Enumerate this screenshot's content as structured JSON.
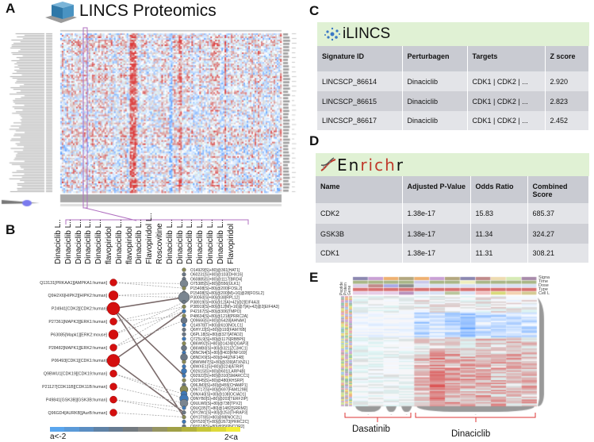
{
  "panels": {
    "a": "A",
    "b": "B",
    "c": "C",
    "d": "D",
    "e": "E"
  },
  "panel_a": {
    "title": "LINCS Proteomics",
    "logo_icon": "cube-icon",
    "column_labels": [
      "Dinaciclib L..",
      "Dinaciclib L..",
      "Dinaciclib L..",
      "Dinaciclib L..",
      "Dinaciclib L..",
      "flavopiridol",
      "Dinaciclib L..",
      "flavopiridol",
      "Dinaciclib L..",
      "Flavopiridol L..",
      "Roscovitine",
      "Dinaciclib L..",
      "Dinaciclib L..",
      "Dinaciclib L..",
      "Dinaciclib L..",
      "Dinaciclib L..",
      "Dinaciclib L..",
      "Flavopiridol"
    ]
  },
  "panel_b": {
    "kinases": [
      {
        "label": "Q13131[PRKAA1][AMPKA1:human]",
        "size": "small"
      },
      {
        "label": "Q9H2X6[HIPK2][HIPK2:human]",
        "size": "medium"
      },
      {
        "label": "P24941[CDK2][CDK2:human]",
        "size": "large"
      },
      {
        "label": "P27361[MAPK3][ERK1:human]",
        "size": "small"
      },
      {
        "label": "P63085[Mapk1][ERK2:mouse]",
        "size": "medium"
      },
      {
        "label": "P28482[MAPK1][ERK2:human]",
        "size": "small"
      },
      {
        "label": "P06493[CDK1][CDK1:human]",
        "size": "large"
      },
      {
        "label": "Q9BWU1[CDK19][CDK19:human]",
        "size": "small"
      },
      {
        "label": "P21127[CDK11B][CDK11B:human]",
        "size": "small"
      },
      {
        "label": "P49841[GSK3B][GSK3B:human]",
        "size": "small"
      },
      {
        "label": "Q96GD4[AURKB][AurB:human]",
        "size": "small"
      }
    ],
    "sites": [
      "O14929[S]+80]@361[HAT1]",
      "O60231[S]+80]@103[DHX16]",
      "O60885[S]+80]@1117[BRD4]",
      "O75385[S]+80]@556[ULK1]",
      "P15408[S]+80]@200[FOSL2]",
      "P15408[S]+80]@200[M]+16]@28[FOSL2]",
      "P30050[S]+80]@38[RPL12]",
      "P38919[S]+80]@12[A]+42]@2[EIF4A3]",
      "P38919[S]+80]@12[M]+16]@7[A]+42]@2[EIF4A3]",
      "P42167[S]+80]@306[TMPO]",
      "P48634[S]+80]@1218[PRRC2A]",
      "Q09666[S]+80]@5428[AHNAK]",
      "Q14978[T]+80]@610[NOLC1]",
      "Q6HYJ3[S]+80]@193[FAM76B]",
      "Q6PL18[S]+80]@327[ATAD2]",
      "Q7Z5L9[S]+80]@1176[RBBP6]",
      "Q86W92[S]+80]@1424[IQGAP3]",
      "Q86WB0[S]+80]@321[ZC3HC1]",
      "Q8NCN4[S]+80]@403[RNF169]",
      "Q8NDX9[S]+80]@44[ZNF148]",
      "Q8WWM7[S]+80]@339[ATXN2L]",
      "Q8WXE1[S]+80]@224[ATRIP]",
      "Q92615[S]+80]@601[LARP4B]",
      "Q92922[S]+80]@310[SMARCC1]",
      "Q92945[S]+80]@480[KHSRP]",
      "Q96JM3[S]+80]@455[CHAMP1]",
      "Q96T17[S]+80]@697[FAM129B]",
      "Q9NX40[S]+80]@108[OCIAD1]",
      "Q9NYB0[S]+80]@203[TERF2IP]",
      "Q9ULW0[S]+80]@738[TPX2]",
      "Q9UQ35[T]+80]@1482[SRRM2]",
      "Q9Y2W1[S]+80]@253[THRAP3]",
      "Q9Y3T9[S]+80]@98[NOC2L]",
      "Q9Y520[T]+80]@2673[PRRC2C]",
      "Q9Y618[S]+80]@956[NCOR2]"
    ],
    "legend_low": "a<-2",
    "legend_high": "2<a",
    "colors": {
      "kinase": "#d40f0f",
      "low": "#5aa6ee",
      "high": "#f3ee3a"
    }
  },
  "panel_c": {
    "brand": "iLINCS",
    "logo_icon": "network-dots-icon",
    "headers": [
      "Signature ID",
      "Perturbagen",
      "Targets",
      "Z score"
    ],
    "rows": [
      [
        "LINCSCP_86614",
        "Dinaciclib",
        "CDK1 | CDK2 | ...",
        "2.920"
      ],
      [
        "LINCSCP_86615",
        "Dinaciclib",
        "CDK1 | CDK2 | ...",
        "2.823"
      ],
      [
        "LINCSCP_86617",
        "Dinaciclib",
        "CDK1 | CDK2 | ...",
        "2.452"
      ]
    ]
  },
  "panel_d": {
    "brand_parts": [
      "En",
      "rich",
      "r"
    ],
    "logo_icon": "dna-icon",
    "headers": [
      "Name",
      "Adjusted P-Value",
      "Odds Ratio",
      "Combined Score"
    ],
    "rows": [
      [
        "CDK2",
        "1.38e-17",
        "15.83",
        "685.37"
      ],
      [
        "GSK3B",
        "1.38e-17",
        "11.34",
        "324.27"
      ],
      [
        "CDK1",
        "1.38e-17",
        "11.31",
        "308.21"
      ]
    ]
  },
  "panel_e": {
    "annotation_labels": [
      "Signa",
      "Time",
      "Dose",
      "Type",
      "Cell L"
    ],
    "row_annotation_labels": [
      "Peptide",
      "Protein",
      "Gene"
    ],
    "groups": [
      {
        "label": "Dasatinib",
        "columns": 4
      },
      {
        "label": "Dinaciclib",
        "columns": 8
      }
    ]
  }
}
